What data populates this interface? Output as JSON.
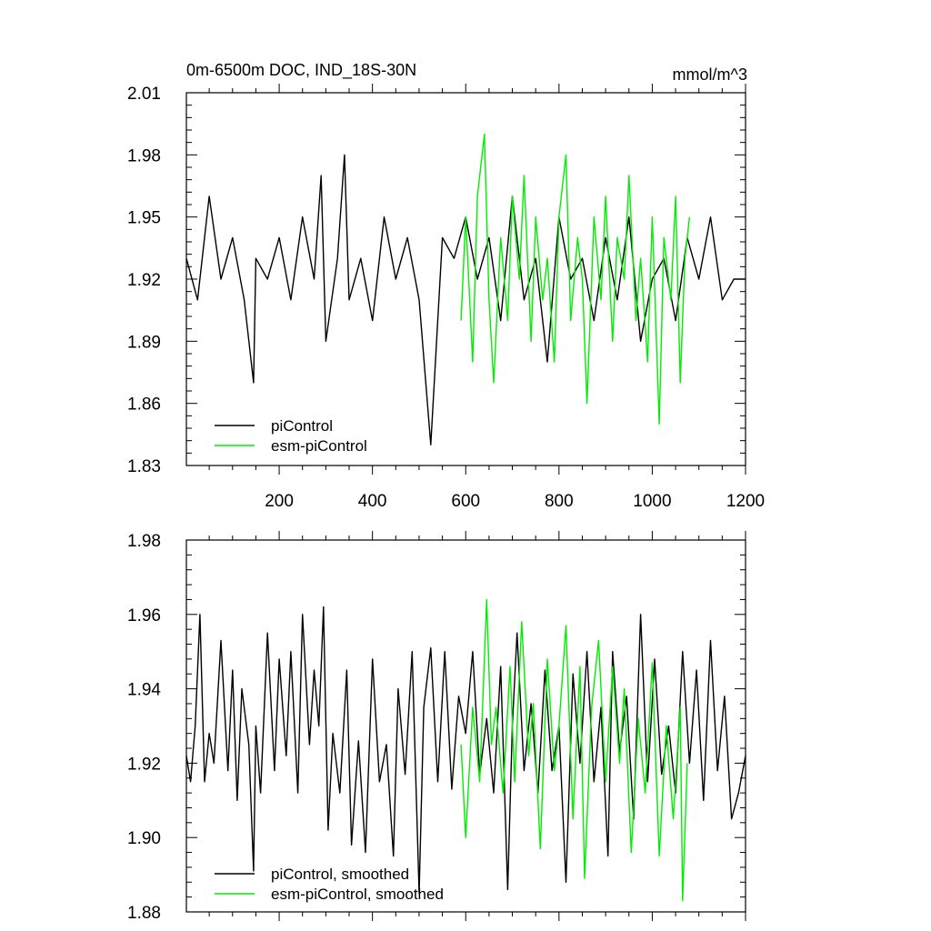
{
  "colors": {
    "picontrol": "#000000",
    "esm": "#00ee00"
  },
  "chart_data": [
    {
      "type": "line",
      "title_left": "0m-6500m DOC, IND_18S-30N",
      "title_right": "mmol/m^3",
      "xlabel": "",
      "ylabel": "",
      "xlim": [
        1,
        1200
      ],
      "ylim": [
        1.83,
        2.01
      ],
      "yticks": [
        "2.01",
        "1.98",
        "1.95",
        "1.92",
        "1.89",
        "1.86",
        "1.83"
      ],
      "xticks": [
        "200",
        "400",
        "600",
        "800",
        "1000",
        "1200"
      ],
      "legend_position": "bottom-left",
      "series": [
        {
          "name": "piControl",
          "x": [
            1,
            25,
            50,
            75,
            100,
            125,
            145,
            150,
            175,
            200,
            225,
            250,
            275,
            290,
            300,
            325,
            340,
            350,
            375,
            400,
            425,
            450,
            475,
            500,
            525,
            550,
            575,
            600,
            625,
            650,
            675,
            700,
            725,
            750,
            775,
            800,
            825,
            850,
            875,
            900,
            925,
            950,
            975,
            1000,
            1025,
            1050,
            1075,
            1100,
            1125,
            1150,
            1175,
            1200
          ],
          "y": [
            1.93,
            1.91,
            1.96,
            1.92,
            1.94,
            1.91,
            1.87,
            1.93,
            1.92,
            1.94,
            1.91,
            1.95,
            1.92,
            1.97,
            1.89,
            1.93,
            1.98,
            1.91,
            1.93,
            1.9,
            1.95,
            1.92,
            1.94,
            1.91,
            1.84,
            1.94,
            1.93,
            1.95,
            1.92,
            1.94,
            1.9,
            1.96,
            1.91,
            1.93,
            1.88,
            1.95,
            1.92,
            1.93,
            1.9,
            1.94,
            1.91,
            1.95,
            1.89,
            1.92,
            1.93,
            1.9,
            1.94,
            1.92,
            1.95,
            1.91,
            1.92,
            1.92
          ]
        },
        {
          "name": "esm-piControl",
          "x": [
            590,
            600,
            615,
            625,
            640,
            650,
            660,
            675,
            690,
            700,
            715,
            725,
            740,
            750,
            765,
            775,
            790,
            800,
            815,
            825,
            840,
            850,
            860,
            875,
            890,
            900,
            915,
            925,
            940,
            950,
            965,
            975,
            990,
            1000,
            1015,
            1025,
            1040,
            1050,
            1060,
            1070,
            1080
          ],
          "y": [
            1.9,
            1.95,
            1.88,
            1.96,
            1.99,
            1.91,
            1.87,
            1.94,
            1.9,
            1.96,
            1.92,
            1.97,
            1.89,
            1.95,
            1.91,
            1.93,
            1.88,
            1.95,
            1.98,
            1.9,
            1.94,
            1.92,
            1.86,
            1.95,
            1.91,
            1.96,
            1.89,
            1.94,
            1.92,
            1.97,
            1.9,
            1.93,
            1.88,
            1.95,
            1.85,
            1.94,
            1.91,
            1.96,
            1.87,
            1.93,
            1.95
          ]
        }
      ]
    },
    {
      "type": "line",
      "xlabel": "",
      "ylabel": "",
      "xlim": [
        1,
        1200
      ],
      "ylim": [
        1.88,
        1.98
      ],
      "yticks": [
        "1.98",
        "1.96",
        "1.94",
        "1.92",
        "1.90",
        "1.88"
      ],
      "legend_position": "bottom-left",
      "series": [
        {
          "name": "piControl, smoothed",
          "x": [
            1,
            10,
            20,
            30,
            40,
            50,
            60,
            75,
            90,
            100,
            110,
            120,
            135,
            145,
            150,
            160,
            175,
            190,
            200,
            215,
            225,
            240,
            250,
            265,
            275,
            285,
            295,
            305,
            315,
            330,
            345,
            355,
            370,
            385,
            400,
            415,
            430,
            445,
            455,
            470,
            485,
            500,
            510,
            525,
            540,
            555,
            570,
            585,
            600,
            615,
            630,
            645,
            660,
            675,
            690,
            700,
            710,
            725,
            740,
            755,
            770,
            785,
            800,
            815,
            830,
            845,
            860,
            875,
            890,
            905,
            915,
            930,
            945,
            960,
            975,
            990,
            1005,
            1020,
            1035,
            1050,
            1065,
            1080,
            1095,
            1110,
            1125,
            1140,
            1155,
            1170,
            1185,
            1200
          ],
          "y": [
            1.922,
            1.915,
            1.93,
            1.96,
            1.915,
            1.928,
            1.92,
            1.953,
            1.918,
            1.945,
            1.91,
            1.94,
            1.925,
            1.891,
            1.93,
            1.912,
            1.955,
            1.918,
            1.948,
            1.922,
            1.95,
            1.912,
            1.96,
            1.925,
            1.945,
            1.93,
            1.962,
            1.902,
            1.928,
            1.912,
            1.945,
            1.898,
            1.926,
            1.896,
            1.948,
            1.915,
            1.925,
            1.895,
            1.94,
            1.917,
            1.95,
            1.885,
            1.935,
            1.951,
            1.915,
            1.95,
            1.913,
            1.938,
            1.928,
            1.95,
            1.917,
            1.932,
            1.912,
            1.946,
            1.886,
            1.93,
            1.955,
            1.918,
            1.936,
            1.912,
            1.945,
            1.918,
            1.93,
            1.888,
            1.944,
            1.92,
            1.95,
            1.915,
            1.935,
            1.895,
            1.95,
            1.923,
            1.938,
            1.905,
            1.96,
            1.915,
            1.948,
            1.917,
            1.93,
            1.912,
            1.95,
            1.92,
            1.945,
            1.91,
            1.953,
            1.918,
            1.938,
            1.905,
            1.912,
            1.922
          ]
        },
        {
          "name": "esm-piControl, smoothed",
          "x": [
            590,
            600,
            615,
            630,
            645,
            655,
            665,
            680,
            695,
            705,
            720,
            735,
            745,
            760,
            775,
            790,
            800,
            815,
            830,
            845,
            855,
            870,
            885,
            900,
            915,
            930,
            940,
            955,
            970,
            985,
            1000,
            1015,
            1030,
            1045,
            1060,
            1065,
            1075
          ],
          "y": [
            1.925,
            1.9,
            1.935,
            1.915,
            1.964,
            1.925,
            1.935,
            1.912,
            1.946,
            1.915,
            1.958,
            1.922,
            1.936,
            1.897,
            1.948,
            1.918,
            1.93,
            1.957,
            1.905,
            1.946,
            1.889,
            1.935,
            1.953,
            1.915,
            1.946,
            1.92,
            1.94,
            1.896,
            1.932,
            1.912,
            1.947,
            1.895,
            1.93,
            1.905,
            1.935,
            1.883,
            1.92
          ]
        }
      ]
    }
  ]
}
